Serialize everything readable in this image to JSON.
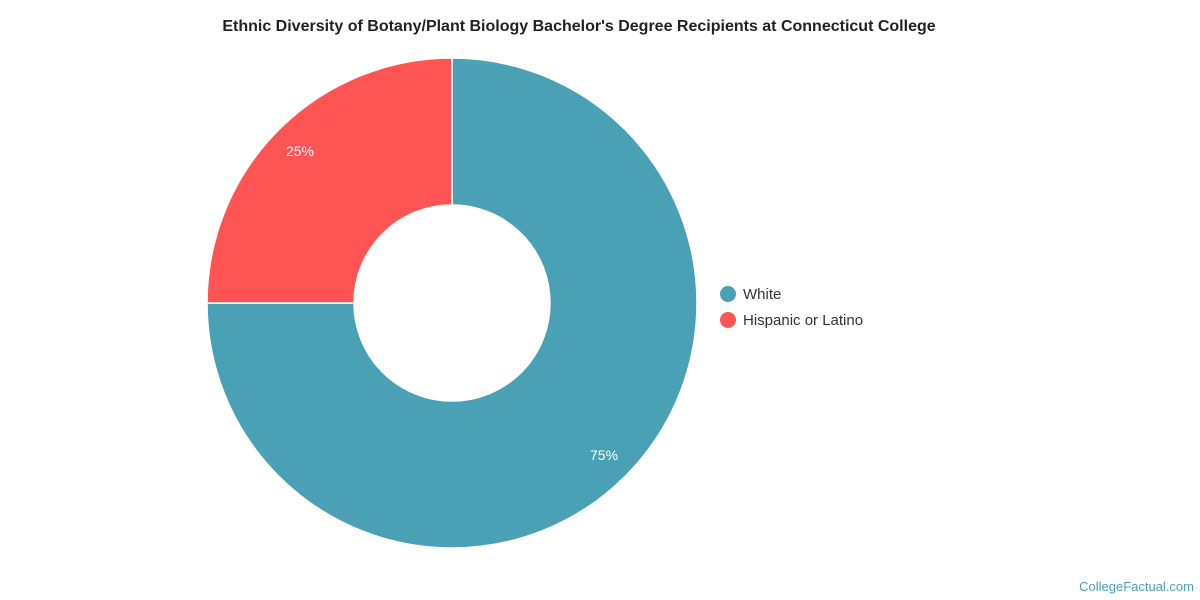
{
  "chart_data": {
    "type": "pie",
    "variant": "donut",
    "title": "Ethnic Diversity of Botany/Plant Biology Bachelor's Degree Recipients at Connecticut College",
    "categories": [
      "White",
      "Hispanic or Latino"
    ],
    "values": [
      75,
      25
    ],
    "data_labels": [
      "75%",
      "25%"
    ],
    "colors": [
      "#4aa0b4",
      "#ff5454"
    ],
    "legend_position": "right"
  },
  "credit": "CollegeFactual.com"
}
